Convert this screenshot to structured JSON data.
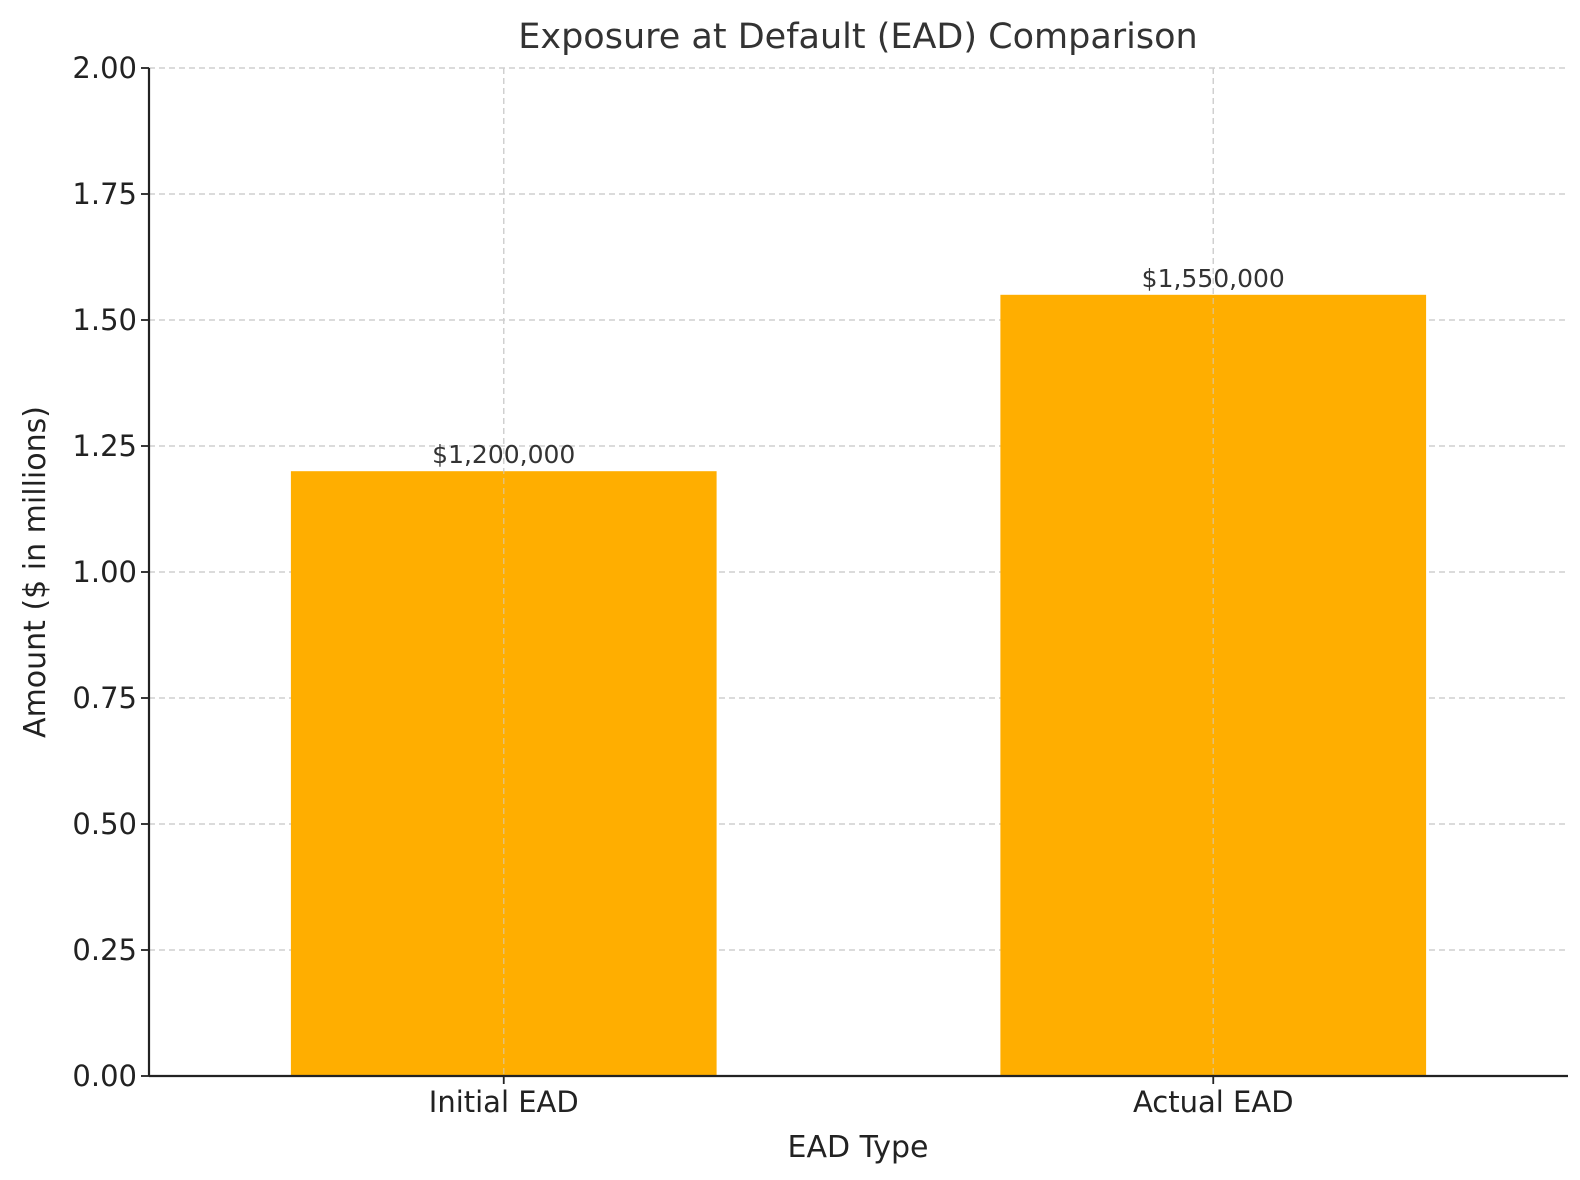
{
  "chart_data": {
    "type": "bar",
    "title": "Exposure at Default (EAD) Comparison",
    "xlabel": "EAD Type",
    "ylabel": "Amount ($ in millions)",
    "categories": [
      "Initial EAD",
      "Actual EAD"
    ],
    "values": [
      1.2,
      1.55
    ],
    "data_labels": [
      "$1,200,000",
      "$1,550,000"
    ],
    "ylim": [
      0,
      2.0
    ],
    "yticks": [
      "0.00",
      "0.25",
      "0.50",
      "0.75",
      "1.00",
      "1.25",
      "1.50",
      "1.75",
      "2.00"
    ],
    "grid": true,
    "bar_color": "#FFAE00"
  }
}
